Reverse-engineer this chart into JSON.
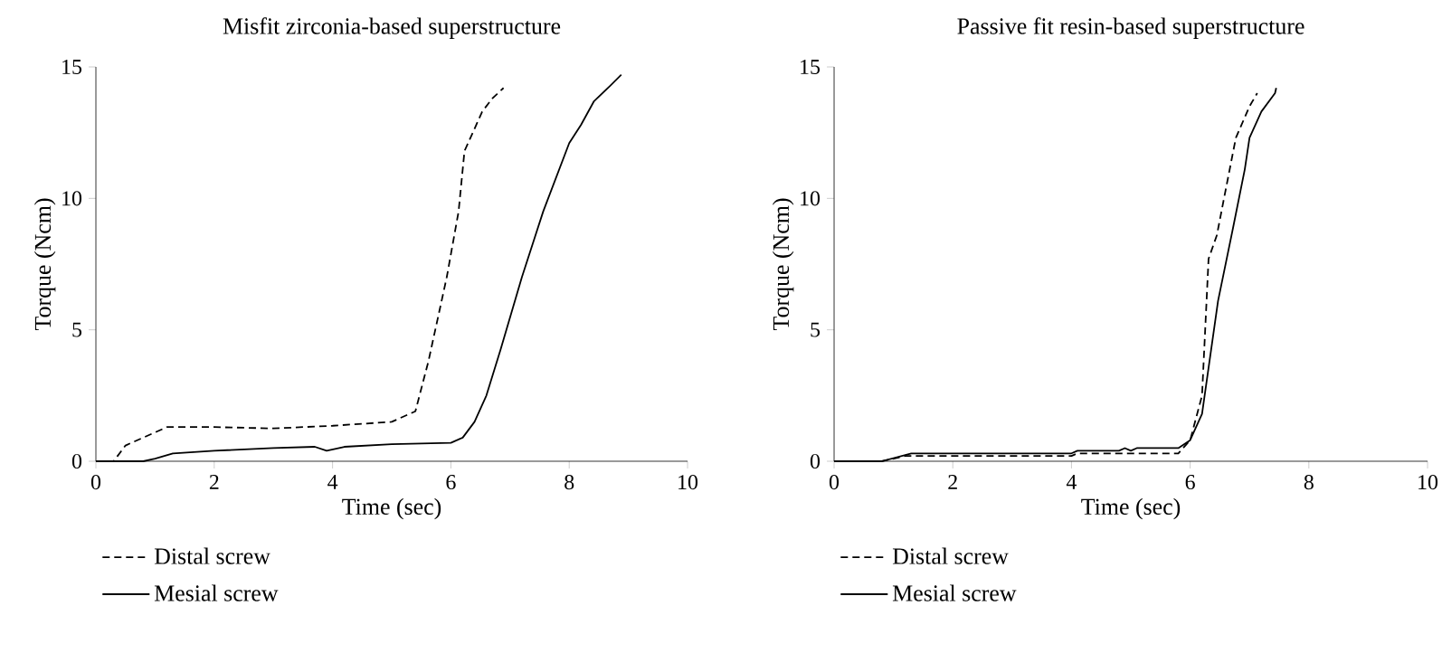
{
  "chart_data": [
    {
      "type": "line",
      "title": "Misfit zirconia-based superstructure",
      "xlabel": "Time (sec)",
      "ylabel": "Torque (Ncm)",
      "xlim": [
        0,
        10
      ],
      "ylim": [
        0,
        15
      ],
      "xticks": [
        0,
        2,
        4,
        6,
        8,
        10
      ],
      "yticks": [
        0,
        5,
        10,
        15
      ],
      "legend": "bottom left",
      "series": [
        {
          "name": "Distal screw",
          "color": "#000000",
          "line_style": "dashed",
          "x": [
            0,
            0.3,
            0.5,
            0.8,
            1.2,
            2,
            3,
            4,
            5,
            5.4,
            5.62,
            5.93,
            6.13,
            6.23,
            6.53,
            6.7,
            6.89
          ],
          "values": [
            0,
            0,
            0.6,
            0.9,
            1.3,
            1.3,
            1.25,
            1.35,
            1.5,
            1.9,
            3.8,
            7.0,
            9.5,
            11.8,
            13.3,
            13.8,
            14.2
          ]
        },
        {
          "name": "Mesial screw",
          "color": "#000000",
          "line_style": "solid",
          "x": [
            0,
            0.8,
            1,
            1.3,
            2,
            3,
            3.7,
            3.9,
            4.2,
            5,
            6,
            6.2,
            6.4,
            6.6,
            6.84,
            7.2,
            7.56,
            8.0,
            8.2,
            8.42,
            8.7,
            8.88
          ],
          "values": [
            0,
            0,
            0.1,
            0.3,
            0.4,
            0.5,
            0.55,
            0.4,
            0.55,
            0.65,
            0.7,
            0.9,
            1.5,
            2.5,
            4.25,
            7,
            9.5,
            12.1,
            12.8,
            13.7,
            14.3,
            14.7
          ]
        }
      ]
    },
    {
      "type": "line",
      "title": "Passive fit resin-based superstructure",
      "xlabel": "Time (sec)",
      "ylabel": "Torque (Ncm)",
      "xlim": [
        0,
        10
      ],
      "ylim": [
        0,
        15
      ],
      "xticks": [
        0,
        2,
        4,
        6,
        8,
        10
      ],
      "yticks": [
        0,
        5,
        10,
        15
      ],
      "legend": "bottom left",
      "series": [
        {
          "name": "Distal screw",
          "color": "#000000",
          "line_style": "dashed",
          "x": [
            0,
            0.8,
            1.2,
            2,
            4,
            4.1,
            5.8,
            6,
            6.2,
            6.31,
            6.45,
            6.57,
            6.77,
            7.0,
            7.13
          ],
          "values": [
            0,
            0,
            0.2,
            0.2,
            0.2,
            0.3,
            0.3,
            0.8,
            2.5,
            7.7,
            8.6,
            10.0,
            12.3,
            13.5,
            14.0
          ]
        },
        {
          "name": "Mesial screw",
          "color": "#000000",
          "line_style": "solid",
          "x": [
            0,
            0.8,
            1.3,
            4,
            4.1,
            4.8,
            4.9,
            5,
            5.1,
            5.8,
            6,
            6.2,
            6.47,
            6.72,
            6.92,
            7.0,
            7.2,
            7.43,
            7.45
          ],
          "values": [
            0,
            0,
            0.3,
            0.3,
            0.4,
            0.4,
            0.5,
            0.4,
            0.5,
            0.5,
            0.8,
            1.8,
            6.1,
            8.85,
            11.1,
            12.3,
            13.3,
            14.0,
            14.2
          ]
        }
      ]
    }
  ]
}
